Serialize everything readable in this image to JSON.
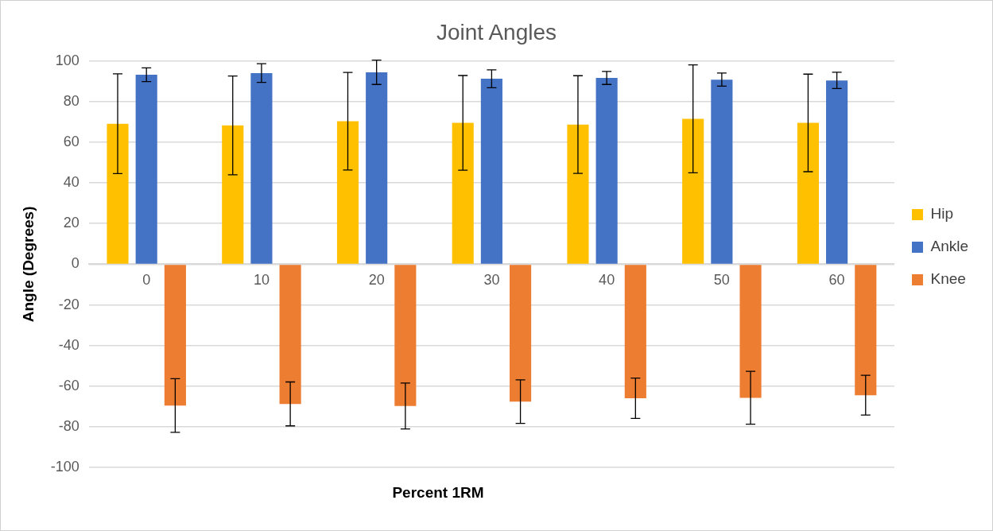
{
  "chart_data": {
    "type": "bar",
    "title": "Joint Angles",
    "xlabel": "Percent 1RM",
    "ylabel": "Angle (Degrees)",
    "categories": [
      "0",
      "10",
      "20",
      "30",
      "40",
      "50",
      "60"
    ],
    "series": [
      {
        "name": "Hip",
        "color": "#ffc000",
        "values": [
          69.1,
          68.3,
          70.3,
          69.5,
          68.7,
          71.5,
          69.5
        ],
        "errors": [
          24.5,
          24.3,
          24,
          23.3,
          24,
          26.5,
          24
        ]
      },
      {
        "name": "Ankle",
        "color": "#4472c4",
        "values": [
          93.2,
          94,
          94.4,
          91.2,
          91.6,
          90.8,
          90.4
        ],
        "errors": [
          3.4,
          4.6,
          6,
          4.4,
          3.2,
          3.2,
          4
        ]
      },
      {
        "name": "Knee",
        "color": "#ed7d31",
        "values": [
          -69.5,
          -68.7,
          -69.7,
          -67.6,
          -65.9,
          -65.7,
          -64.4
        ],
        "errors": [
          13.2,
          10.8,
          11.3,
          10.7,
          9.9,
          13,
          9.8
        ]
      }
    ],
    "ylim": [
      -100,
      100
    ],
    "yticks": [
      -100,
      -80,
      -60,
      -40,
      -20,
      0,
      20,
      40,
      60,
      80,
      100
    ],
    "grid": "y",
    "legend": "right"
  }
}
